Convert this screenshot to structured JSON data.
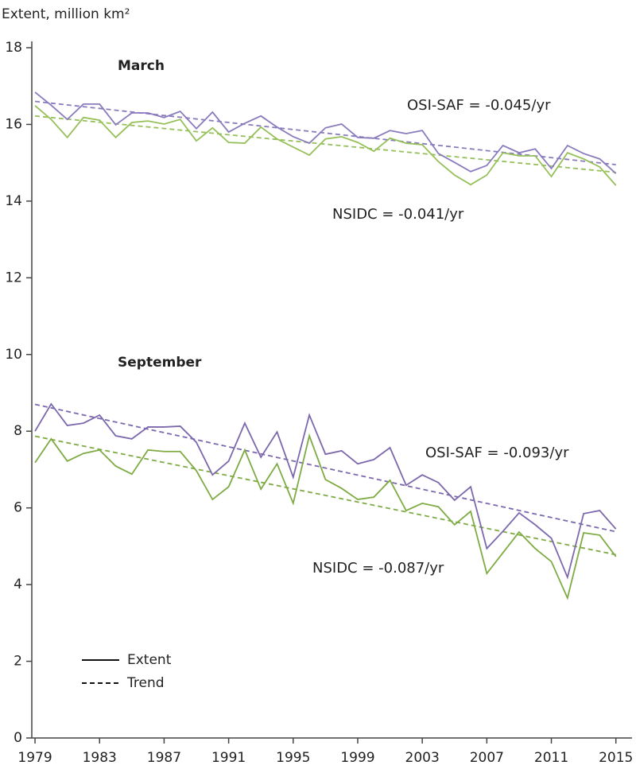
{
  "chart_data": {
    "type": "line",
    "ylabel": "Extent, million km²",
    "x": [
      1979,
      1980,
      1981,
      1982,
      1983,
      1984,
      1985,
      1986,
      1987,
      1988,
      1989,
      1990,
      1991,
      1992,
      1993,
      1994,
      1995,
      1996,
      1997,
      1998,
      1999,
      2000,
      2001,
      2002,
      2003,
      2004,
      2005,
      2006,
      2007,
      2008,
      2009,
      2010,
      2011,
      2012,
      2013,
      2014,
      2015
    ],
    "series": [
      {
        "color": "#8a7bbd",
        "style": "solid",
        "values": [
          16.84,
          16.5,
          16.13,
          16.53,
          16.53,
          15.99,
          16.3,
          16.3,
          16.18,
          16.34,
          15.89,
          16.32,
          15.8,
          16.03,
          16.22,
          15.93,
          15.68,
          15.51,
          15.91,
          16.01,
          15.66,
          15.64,
          15.84,
          15.76,
          15.84,
          15.24,
          15.01,
          14.77,
          14.93,
          15.45,
          15.26,
          15.36,
          14.85,
          15.45,
          15.24,
          15.1,
          14.72
        ]
      },
      {
        "color": "#96c05a",
        "style": "solid",
        "values": [
          16.49,
          16.13,
          15.66,
          16.18,
          16.11,
          15.66,
          16.05,
          16.09,
          16.01,
          16.13,
          15.57,
          15.91,
          15.53,
          15.51,
          15.93,
          15.62,
          15.41,
          15.2,
          15.62,
          15.68,
          15.53,
          15.3,
          15.64,
          15.51,
          15.47,
          15.03,
          14.68,
          14.43,
          14.68,
          15.26,
          15.18,
          15.18,
          14.64,
          15.26,
          15.1,
          14.89,
          14.41
        ]
      },
      {
        "color": "#7c68ad",
        "style": "solid",
        "values": [
          8.0,
          8.71,
          8.15,
          8.21,
          8.42,
          7.88,
          7.8,
          8.11,
          8.11,
          8.13,
          7.71,
          6.86,
          7.22,
          8.21,
          7.32,
          7.98,
          6.8,
          8.42,
          7.4,
          7.49,
          7.15,
          7.26,
          7.57,
          6.59,
          6.86,
          6.66,
          6.2,
          6.55,
          4.94,
          5.39,
          5.87,
          5.56,
          5.21,
          4.19,
          5.85,
          5.93,
          5.45
        ]
      },
      {
        "color": "#7fab44",
        "style": "solid",
        "values": [
          7.18,
          7.8,
          7.22,
          7.42,
          7.51,
          7.09,
          6.88,
          7.51,
          7.47,
          7.47,
          6.97,
          6.22,
          6.55,
          7.51,
          6.49,
          7.15,
          6.12,
          7.88,
          6.74,
          6.51,
          6.22,
          6.28,
          6.72,
          5.93,
          6.12,
          6.03,
          5.56,
          5.91,
          4.29,
          4.83,
          5.37,
          4.94,
          4.6,
          3.65,
          5.35,
          5.29,
          4.73
        ]
      }
    ],
    "trends": [
      {
        "color": "#8a7bbd",
        "style": "dashed",
        "x": [
          1979,
          2015
        ],
        "values": [
          16.6,
          14.95
        ]
      },
      {
        "color": "#96c05a",
        "style": "dashed",
        "x": [
          1979,
          2015
        ],
        "values": [
          16.22,
          14.75
        ]
      },
      {
        "color": "#7c68ad",
        "style": "dashed",
        "x": [
          1979,
          2015
        ],
        "values": [
          8.7,
          5.38
        ]
      },
      {
        "color": "#7fab44",
        "style": "dashed",
        "x": [
          1979,
          2015
        ],
        "values": [
          7.87,
          4.78
        ]
      }
    ],
    "annotations": [
      {
        "text": "March",
        "color": "#111111"
      },
      {
        "text": "September",
        "color": "#111111"
      },
      {
        "text": "OSI-SAF = -0.045/yr",
        "color": "#8a7bbd"
      },
      {
        "text": "NSIDC = -0.041/yr",
        "color": "#96c05a"
      },
      {
        "text": "OSI-SAF = -0.093/yr",
        "color": "#7c68ad"
      },
      {
        "text": "NSIDC = -0.087/yr",
        "color": "#7fab44"
      }
    ],
    "legend": [
      {
        "label": "Extent",
        "style": "solid"
      },
      {
        "label": "Trend",
        "style": "dashed"
      }
    ],
    "xlim": [
      1978.8,
      2016
    ],
    "ylim": [
      0,
      18
    ],
    "xticks": [
      1979,
      1983,
      1987,
      1991,
      1995,
      1999,
      2003,
      2007,
      2011,
      2015
    ],
    "yticks": [
      0,
      2,
      4,
      6,
      8,
      10,
      12,
      14,
      16,
      18
    ]
  }
}
